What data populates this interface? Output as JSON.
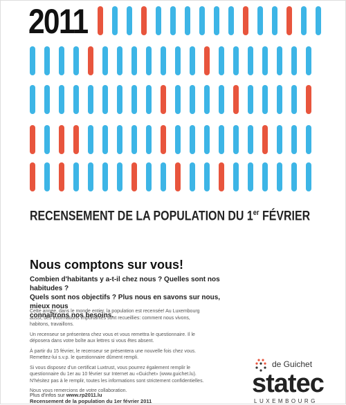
{
  "poster": {
    "year": "2011",
    "headline": {
      "main": "RECENSEMENT DE LA POPULATION DU 1",
      "superscript": "er",
      "end": "FÉVRIER"
    },
    "call": "Nous comptons sur vous!",
    "questions": [
      "Combien d'habitants y a-t-il chez nous ? Quelles sont nos habitudes ?",
      "Quels sont nos objectifs ? Plus nous en savons sur nous, mieux nous",
      "connaîtrons nos besoins."
    ],
    "paragraphs": [
      "Cette année, dans le monde entier, la population est recensée! Au Luxembourg aussi, des informations importantes sont recueillies: comment nous vivons, habitons, travaillons.",
      "Un recenseur se présentera chez vous et vous remettra le questionnaire. Il le déposera dans votre boîte aux lettres si vous êtes absent.",
      "À partir du 15 février, le recenseur se présentera une nouvelle fois chez vous. Remettez-lui s.v.p. le questionnaire dûment rempli.",
      "Si vous disposez d'un certificat Luxtrust, vous pourrez également remplir le questionnaire du 1er au 10 février sur Internet au «Guichet» (www.guichet.lu). N'hésitez pas à le remplir, toutes les informations sont strictement confidentielles.",
      "Nous vous remercions de votre collaboration."
    ],
    "footer": {
      "info_prefix": "Plus d'infos sur",
      "info_url": "www.rp2011.lu",
      "caption": "Recensement de la population du 1er février 2011"
    },
    "logos": {
      "guichet": "de Guichet",
      "statec": "statec",
      "country": "LUXEMBOURG"
    }
  }
}
